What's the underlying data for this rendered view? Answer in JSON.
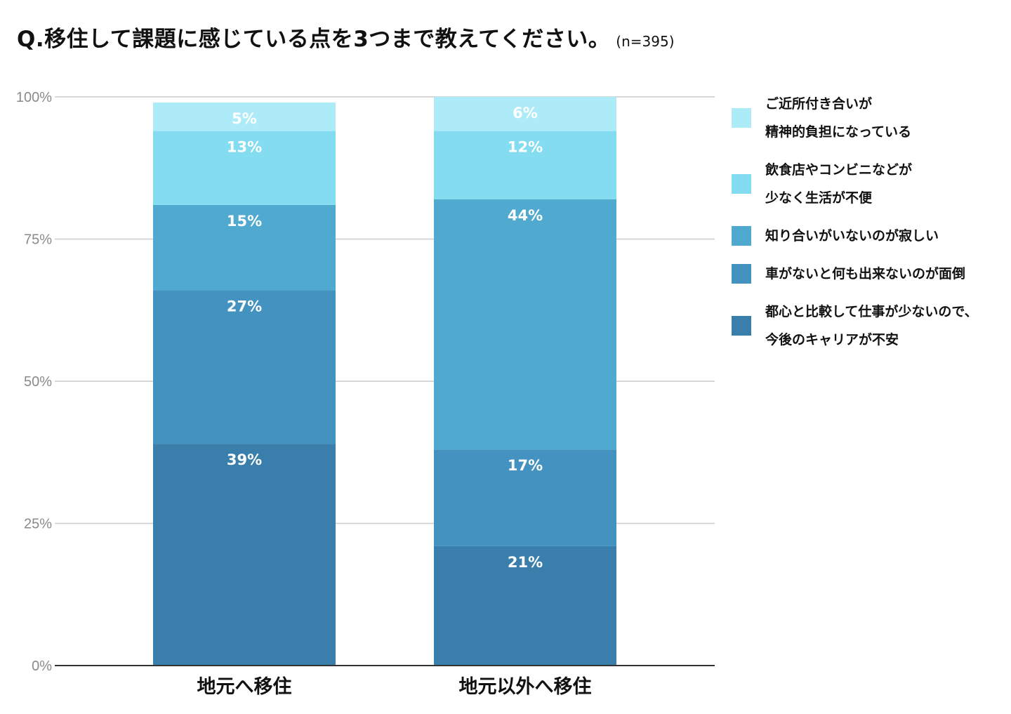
{
  "title": {
    "main": "Q.移住して課題に感じている点を3つまで教えてください。",
    "sample": "(n=395)"
  },
  "chart_data": {
    "type": "bar",
    "stacked": true,
    "categories": [
      "地元へ移住",
      "地元以外へ移住"
    ],
    "ylim": [
      0,
      100
    ],
    "yticks": [
      "0%",
      "25%",
      "50%",
      "75%",
      "100%"
    ],
    "grid": true,
    "legend_position": "right",
    "series": [
      {
        "name": "都心と比較して仕事が少ないので、\n今後のキャリアが不安",
        "values": [
          39,
          21
        ],
        "labels": [
          "39%",
          "21%"
        ],
        "color": "#3a7fab"
      },
      {
        "name": "車がないと何も出来ないのが面倒",
        "values": [
          27,
          17
        ],
        "labels": [
          "27%",
          "17%"
        ],
        "color": "#4392bf"
      },
      {
        "name": "知り合いがいないのが寂しい",
        "values": [
          15,
          44
        ],
        "labels": [
          "15%",
          "44%"
        ],
        "color": "#50aacf"
      },
      {
        "name": "飲食店やコンビニなどが\n少なく生活が不便",
        "values": [
          13,
          12
        ],
        "labels": [
          "13%",
          "12%"
        ],
        "color": "#84dcf1"
      },
      {
        "name": "ご近所付き合いが\n精神的負担になっている",
        "values": [
          5,
          6
        ],
        "labels": [
          "5%",
          "6%"
        ],
        "color": "#aeebf8"
      }
    ]
  }
}
